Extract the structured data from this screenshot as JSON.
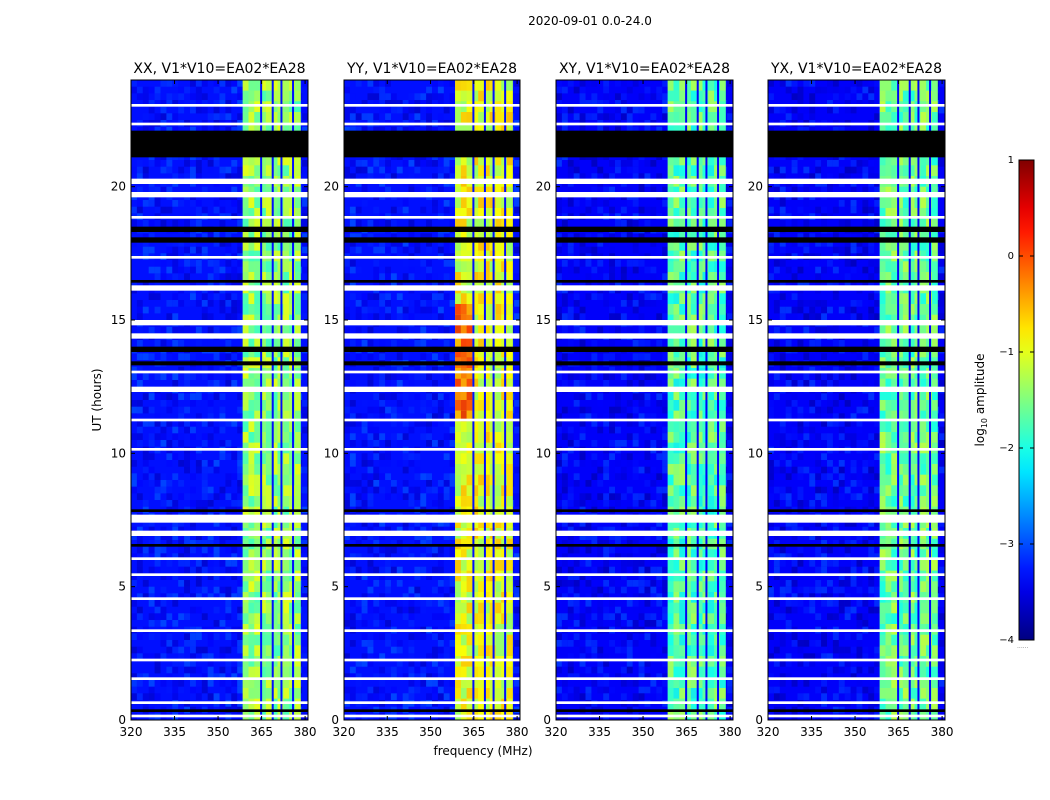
{
  "figure": {
    "suptitle": "2020-09-01 0.0-24.0",
    "xlabel": "frequency (MHz)",
    "ylabel": "UT (hours)",
    "colorbar_label": "log10 amplitude",
    "colorbar_label_base": "log",
    "colorbar_label_sub": "10",
    "colorbar_label_rest": " amplitude",
    "colorbar_dots": "......"
  },
  "chart_data": [
    {
      "type": "heatmap",
      "title": "XX, V1*V10=EA02*EA28",
      "xlabel": "frequency (MHz)",
      "ylabel": "UT (hours)",
      "xlim": [
        320,
        381
      ],
      "ylim": [
        0,
        24
      ],
      "xticks": [
        320,
        335,
        350,
        365,
        380
      ],
      "yticks": [
        0,
        5,
        10,
        15,
        20
      ],
      "colorbar": {
        "label": "log10 amplitude",
        "range": [
          -4,
          1
        ],
        "ticks": [
          -4,
          -3,
          -2,
          -1,
          0,
          1
        ],
        "colormap": "jet"
      },
      "band_MHz": [
        358.5,
        378.5
      ],
      "band_level": -1.4,
      "background_level": -3.3
    },
    {
      "type": "heatmap",
      "title": "YY, V1*V10=EA02*EA28",
      "xlabel": "frequency (MHz)",
      "ylabel": "UT (hours)",
      "xlim": [
        320,
        381
      ],
      "ylim": [
        0,
        24
      ],
      "xticks": [
        320,
        335,
        350,
        365,
        380
      ],
      "yticks": [
        0,
        5,
        10,
        15,
        20
      ],
      "colorbar": {
        "label": "log10 amplitude",
        "range": [
          -4,
          1
        ],
        "ticks": [
          -4,
          -3,
          -2,
          -1,
          0,
          1
        ],
        "colormap": "jet"
      },
      "band_MHz": [
        358.5,
        378.5
      ],
      "band_level": -1.0,
      "background_level": -3.3
    },
    {
      "type": "heatmap",
      "title": "XY, V1*V10=EA02*EA28",
      "xlabel": "frequency (MHz)",
      "ylabel": "UT (hours)",
      "xlim": [
        320,
        381
      ],
      "ylim": [
        0,
        24
      ],
      "xticks": [
        320,
        335,
        350,
        365,
        380
      ],
      "yticks": [
        0,
        5,
        10,
        15,
        20
      ],
      "colorbar": {
        "label": "log10 amplitude",
        "range": [
          -4,
          1
        ],
        "ticks": [
          -4,
          -3,
          -2,
          -1,
          0,
          1
        ],
        "colormap": "jet"
      },
      "band_MHz": [
        358.5,
        378.5
      ],
      "band_level": -1.7,
      "background_level": -3.4
    },
    {
      "type": "heatmap",
      "title": "YX, V1*V10=EA02*EA28",
      "xlabel": "frequency (MHz)",
      "ylabel": "UT (hours)",
      "xlim": [
        320,
        381
      ],
      "ylim": [
        0,
        24
      ],
      "xticks": [
        320,
        335,
        350,
        365,
        380
      ],
      "yticks": [
        0,
        5,
        10,
        15,
        20
      ],
      "colorbar": {
        "label": "log10 amplitude",
        "range": [
          -4,
          1
        ],
        "ticks": [
          -4,
          -3,
          -2,
          -1,
          0,
          1
        ],
        "colormap": "jet"
      },
      "band_MHz": [
        358.5,
        378.5
      ],
      "band_level": -1.6,
      "background_level": -3.4
    }
  ]
}
